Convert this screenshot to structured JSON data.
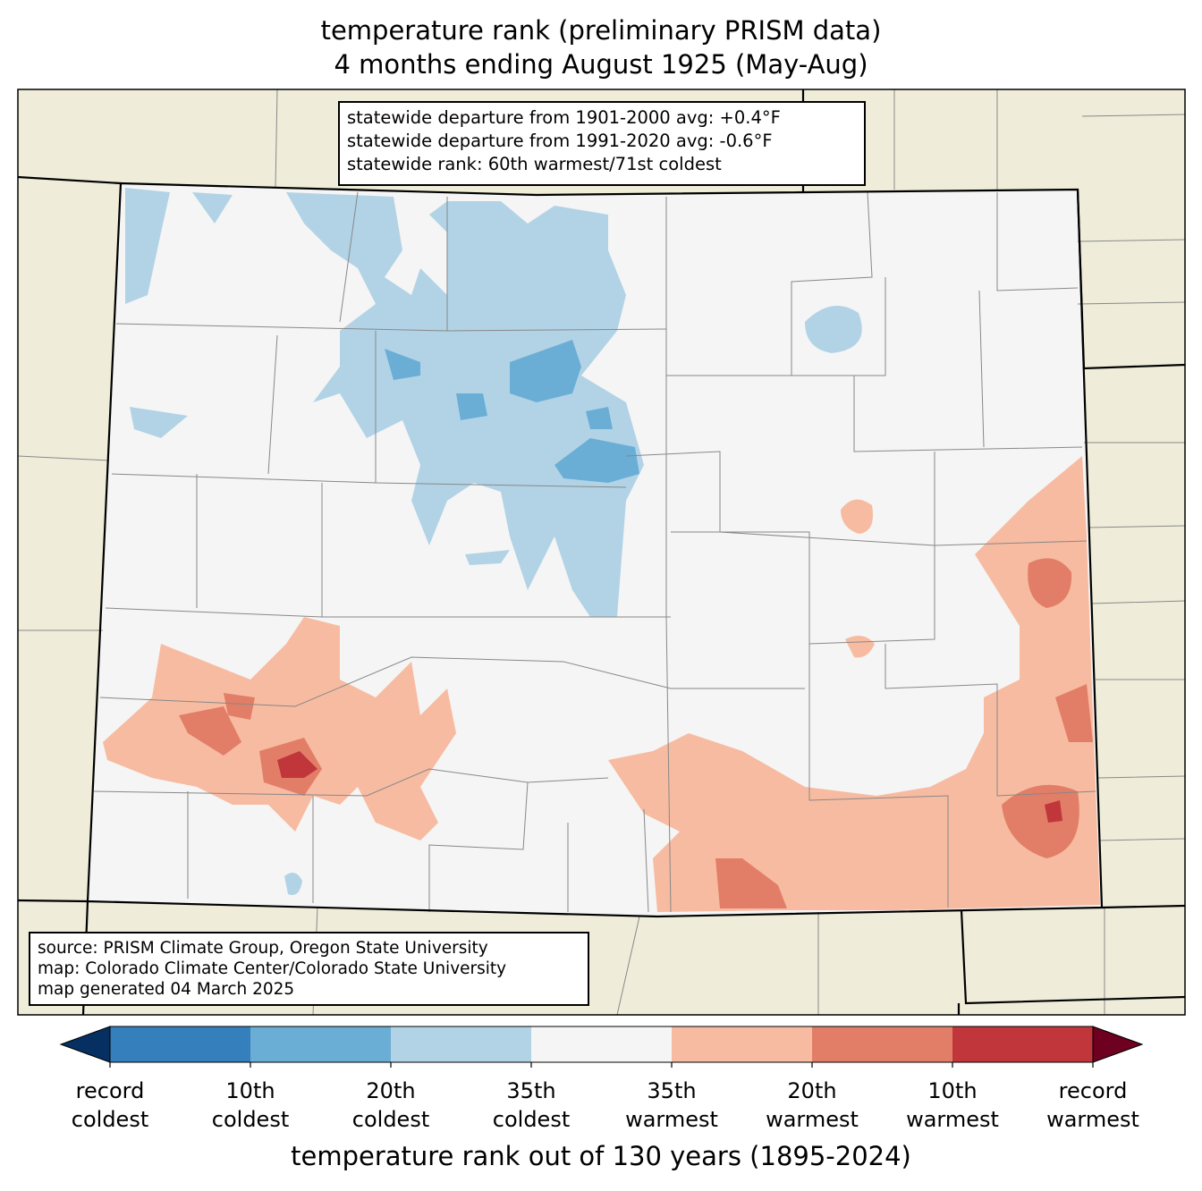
{
  "title": {
    "line1": "temperature rank (preliminary PRISM data)",
    "line2": "4 months ending August 1925 (May-Aug)"
  },
  "stats_box": {
    "line1": "statewide departure from 1901-2000 avg: +0.4°F",
    "line2": "statewide departure from 1991-2020 avg: -0.6°F",
    "line3": "statewide rank: 60th warmest/71st coldest"
  },
  "source_box": {
    "line1": "source: PRISM Climate Group, Oregon State University",
    "line2": "map: Colorado Climate Center/Colorado State University",
    "line3": "map generated 04 March 2025"
  },
  "colorbar": {
    "axis_label": "temperature rank out of 130 years (1895-2024)",
    "colors": [
      "#053061",
      "#3580bc",
      "#6aaed6",
      "#b2d3e6",
      "#f5f5f5",
      "#f7bba1",
      "#e27e67",
      "#c0363b",
      "#6e0020"
    ],
    "ticks": [
      {
        "line1": "record",
        "line2": "coldest"
      },
      {
        "line1": "10th",
        "line2": "coldest"
      },
      {
        "line1": "20th",
        "line2": "coldest"
      },
      {
        "line1": "35th",
        "line2": "coldest"
      },
      {
        "line1": "35th",
        "line2": "warmest"
      },
      {
        "line1": "20th",
        "line2": "warmest"
      },
      {
        "line1": "10th",
        "line2": "warmest"
      },
      {
        "line1": "record",
        "line2": "warmest"
      }
    ]
  },
  "map_colors": {
    "land": "#efedda",
    "state": "#f5f5f5",
    "county": "#888888"
  }
}
